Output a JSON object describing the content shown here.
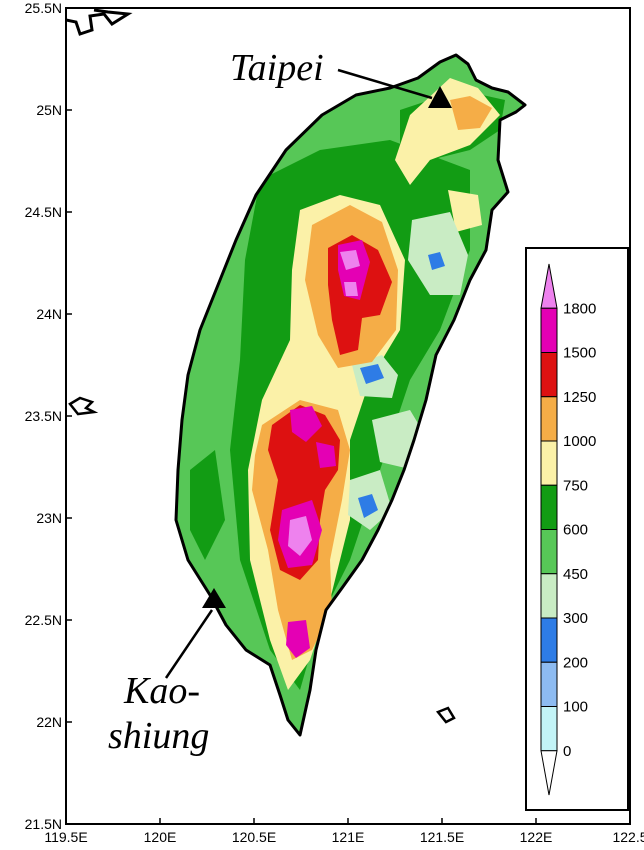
{
  "map": {
    "lat_ticks": [
      "25.5N",
      "25N",
      "24.5N",
      "24N",
      "23.5N",
      "23N",
      "22.5N",
      "22N",
      "21.5N"
    ],
    "lon_ticks": [
      "119.5E",
      "120E",
      "120.5E",
      "121E",
      "121.5E",
      "122E",
      "122.5"
    ],
    "lat_range": [
      21.5,
      25.5
    ],
    "lon_range": [
      119.5,
      122.5
    ],
    "cities": [
      {
        "name": "Taipei",
        "label": "Taipei",
        "lon": 121.5,
        "lat": 25.06
      },
      {
        "name": "Kaohsiung",
        "label_line1": "Kao-",
        "label_line2": "shiung",
        "lon": 120.3,
        "lat": 22.62
      }
    ]
  },
  "legend": {
    "levels": [
      "1800",
      "1500",
      "1250",
      "1000",
      "750",
      "600",
      "450",
      "300",
      "200",
      "100",
      "0"
    ],
    "colors": [
      "#ee82ee",
      "#e400b4",
      "#dd1111",
      "#f5ad47",
      "#fbf1a8",
      "#129c14",
      "#57c757",
      "#c9ecc4",
      "#2e7ce6",
      "#8dbbf1",
      "#c3f4f7",
      "#ffffff"
    ]
  }
}
